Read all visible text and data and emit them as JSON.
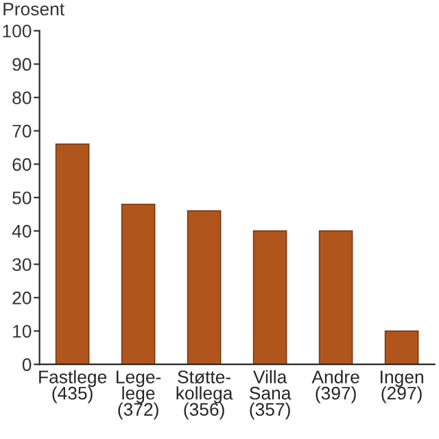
{
  "chart_data": {
    "type": "bar",
    "ylabel": "Prosent",
    "categories": [
      "Fastlege\n(435)",
      "Lege-\nlege\n(372)",
      "Støtte-\nkollega\n(356)",
      "Villa\nSana\n(357)",
      "Andre\n(397)",
      "Ingen\n(297)"
    ],
    "values": [
      66,
      48,
      46,
      40,
      40,
      10
    ],
    "color": "#b0561c",
    "ylim": [
      0,
      100
    ],
    "yticks": [
      0,
      10,
      20,
      30,
      40,
      50,
      60,
      70,
      80,
      90,
      100
    ],
    "grid": false,
    "legend": false
  }
}
